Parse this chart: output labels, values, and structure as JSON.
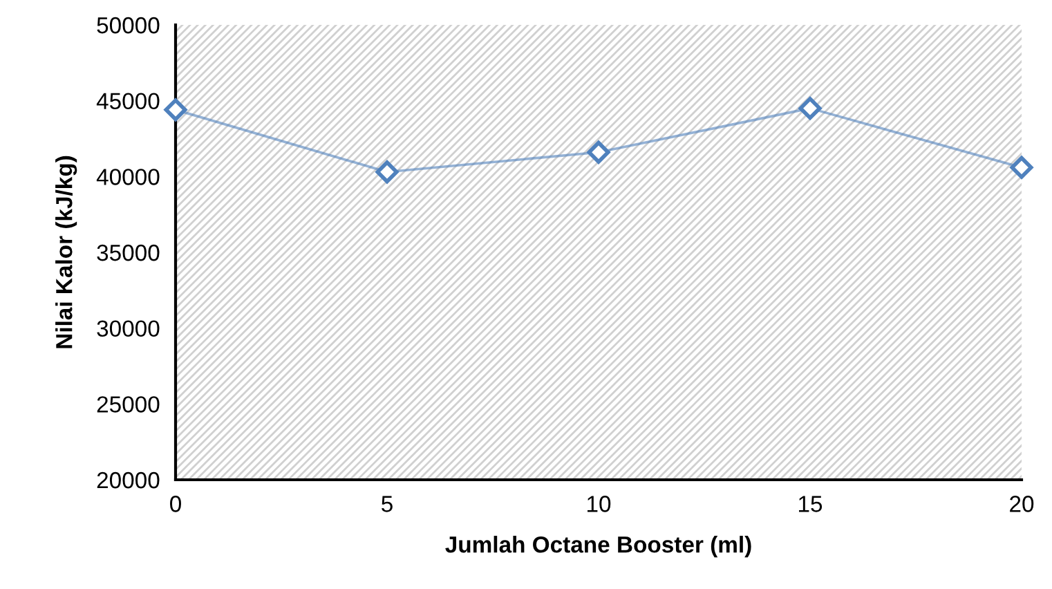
{
  "chart_data": {
    "type": "line",
    "xlabel": "Jumlah Octane Booster (ml)",
    "ylabel": "Nilai Kalor (kJ/kg)",
    "x": [
      0,
      5,
      10,
      15,
      20
    ],
    "series": [
      {
        "color": "#4f81bd",
        "values": [
          44400,
          40300,
          41600,
          44500,
          40600
        ]
      }
    ],
    "xlim": [
      0,
      20
    ],
    "xticks": [
      0,
      5,
      10,
      15,
      20
    ],
    "ylim": [
      20000,
      50000
    ],
    "yticks": [
      20000,
      25000,
      30000,
      35000,
      40000,
      45000,
      50000
    ],
    "grid": false,
    "legend": false,
    "marker": "diamond",
    "line_style": "solid"
  }
}
